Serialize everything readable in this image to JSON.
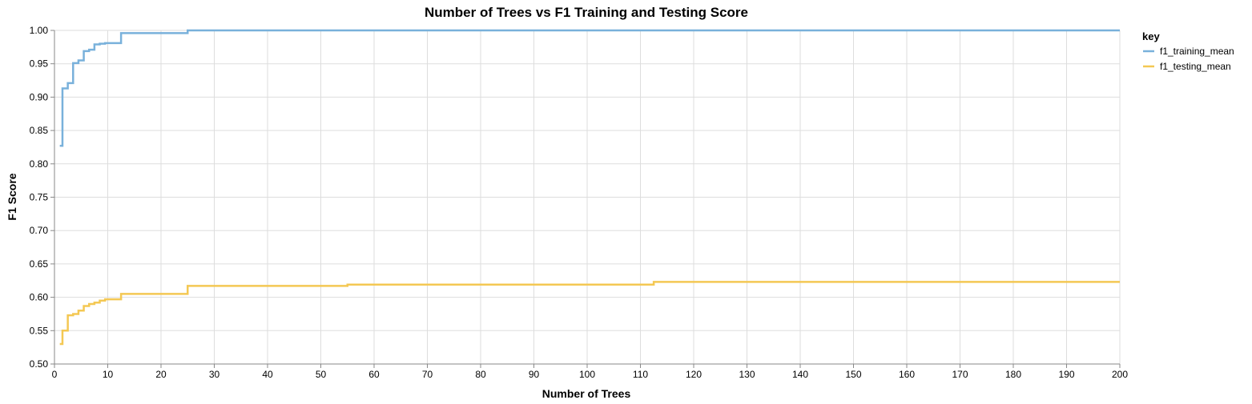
{
  "chart_data": {
    "type": "line",
    "interpolation": "step",
    "title": "Number of Trees vs F1 Training and Testing Score",
    "xlabel": "Number of Trees",
    "ylabel": "F1 Score",
    "xlim": [
      0,
      200
    ],
    "ylim": [
      0.5,
      1.0
    ],
    "x_ticks": [
      0,
      10,
      20,
      30,
      40,
      50,
      60,
      70,
      80,
      90,
      100,
      110,
      120,
      130,
      140,
      150,
      160,
      170,
      180,
      190,
      200
    ],
    "x_tick_labels": [
      "0",
      "10",
      "20",
      "30",
      "40",
      "50",
      "60",
      "70",
      "80",
      "90",
      "100",
      "110",
      "120",
      "130",
      "140",
      "150",
      "160",
      "170",
      "180",
      "190",
      "200"
    ],
    "y_ticks": [
      0.5,
      0.55,
      0.6,
      0.65,
      0.7,
      0.75,
      0.8,
      0.85,
      0.9,
      0.95,
      1.0
    ],
    "y_tick_labels": [
      "0.50",
      "0.55",
      "0.60",
      "0.65",
      "0.70",
      "0.75",
      "0.80",
      "0.85",
      "0.90",
      "0.95",
      "1.00"
    ],
    "grid": true,
    "legend": {
      "title": "key",
      "position": "right"
    },
    "series": [
      {
        "name": "f1_training_mean",
        "color": "#79b1db",
        "x": [
          1,
          2,
          3,
          4,
          5,
          6,
          7,
          8,
          9,
          10,
          15,
          35,
          75,
          150,
          200
        ],
        "y": [
          0.827,
          0.913,
          0.921,
          0.951,
          0.955,
          0.969,
          0.971,
          0.979,
          0.98,
          0.981,
          0.996,
          1.0,
          1.0,
          1.0,
          1.0
        ]
      },
      {
        "name": "f1_testing_mean",
        "color": "#f4c853",
        "x": [
          1,
          2,
          3,
          4,
          5,
          6,
          7,
          8,
          9,
          10,
          15,
          35,
          75,
          150,
          200
        ],
        "y": [
          0.53,
          0.55,
          0.573,
          0.575,
          0.58,
          0.587,
          0.59,
          0.592,
          0.595,
          0.597,
          0.605,
          0.617,
          0.619,
          0.623,
          0.623
        ]
      }
    ]
  }
}
